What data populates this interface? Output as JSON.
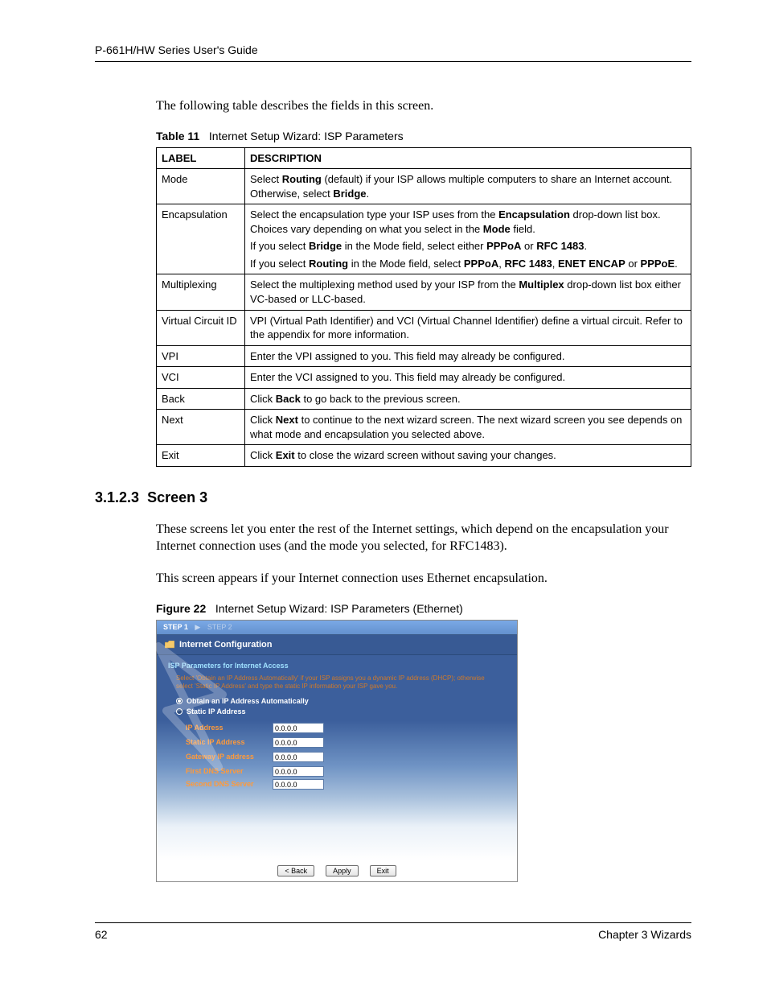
{
  "header": {
    "guide_title": "P-661H/HW Series User's Guide"
  },
  "intro": "The following table describes the fields in this screen.",
  "table_caption": {
    "label": "Table 11",
    "text": "Internet Setup Wizard: ISP Parameters"
  },
  "table": {
    "col_label": "LABEL",
    "col_desc": "DESCRIPTION",
    "rows": [
      {
        "label": "Mode",
        "paras": [
          {
            "segs": [
              {
                "t": "Select "
              },
              {
                "t": "Routing",
                "b": true
              },
              {
                "t": " (default) if your ISP allows multiple computers to share an Internet account. Otherwise, select "
              },
              {
                "t": "Bridge",
                "b": true
              },
              {
                "t": "."
              }
            ]
          }
        ]
      },
      {
        "label": "Encapsulation",
        "paras": [
          {
            "segs": [
              {
                "t": "Select the encapsulation type your ISP uses from the "
              },
              {
                "t": "Encapsulation",
                "b": true
              },
              {
                "t": " drop-down list box. Choices vary depending on what you select in the "
              },
              {
                "t": "Mode",
                "b": true
              },
              {
                "t": " field."
              }
            ]
          },
          {
            "segs": [
              {
                "t": "If you select "
              },
              {
                "t": "Bridge",
                "b": true
              },
              {
                "t": " in the Mode field, select either "
              },
              {
                "t": "PPPoA",
                "b": true
              },
              {
                "t": " or "
              },
              {
                "t": "RFC 1483",
                "b": true
              },
              {
                "t": "."
              }
            ]
          },
          {
            "segs": [
              {
                "t": "If you select "
              },
              {
                "t": "Routing",
                "b": true
              },
              {
                "t": " in the Mode field, select "
              },
              {
                "t": "PPPoA",
                "b": true
              },
              {
                "t": ", "
              },
              {
                "t": "RFC 1483",
                "b": true
              },
              {
                "t": ", "
              },
              {
                "t": "ENET ENCAP",
                "b": true
              },
              {
                "t": " or "
              },
              {
                "t": "PPPoE",
                "b": true
              },
              {
                "t": "."
              }
            ]
          }
        ]
      },
      {
        "label": "Multiplexing",
        "paras": [
          {
            "segs": [
              {
                "t": "Select the multiplexing method used by your ISP from the "
              },
              {
                "t": "Multiplex",
                "b": true
              },
              {
                "t": " drop-down list box either VC-based or LLC-based."
              }
            ]
          }
        ]
      },
      {
        "label": "Virtual Circuit ID",
        "paras": [
          {
            "segs": [
              {
                "t": "VPI (Virtual Path Identifier) and VCI (Virtual Channel Identifier) define a virtual circuit. Refer to the appendix for more information."
              }
            ]
          }
        ]
      },
      {
        "label": "VPI",
        "paras": [
          {
            "segs": [
              {
                "t": "Enter the VPI assigned to you. This field may already be configured."
              }
            ]
          }
        ]
      },
      {
        "label": "VCI",
        "paras": [
          {
            "segs": [
              {
                "t": "Enter the VCI assigned to you. This field may already be configured."
              }
            ]
          }
        ]
      },
      {
        "label": "Back",
        "paras": [
          {
            "segs": [
              {
                "t": "Click "
              },
              {
                "t": "Back",
                "b": true
              },
              {
                "t": " to go back to the previous screen."
              }
            ]
          }
        ]
      },
      {
        "label": "Next",
        "paras": [
          {
            "segs": [
              {
                "t": "Click "
              },
              {
                "t": "Next",
                "b": true
              },
              {
                "t": " to continue to the next wizard screen. The next wizard screen you see depends on what mode and encapsulation you selected above."
              }
            ]
          }
        ]
      },
      {
        "label": "Exit",
        "paras": [
          {
            "segs": [
              {
                "t": "Click "
              },
              {
                "t": "Exit",
                "b": true
              },
              {
                "t": " to close the wizard screen without saving your changes."
              }
            ]
          }
        ]
      }
    ]
  },
  "section": {
    "number": "3.1.2.3",
    "title": "Screen 3"
  },
  "section_p1": "These screens let you enter the rest of the Internet settings, which depend on the encapsulation your Internet connection uses (and the mode you selected, for RFC1483).",
  "section_p2": "This screen appears if your Internet connection uses Ethernet encapsulation.",
  "figure_caption": {
    "label": "Figure 22",
    "text": "Internet Setup Wizard: ISP Parameters (Ethernet)"
  },
  "wizard": {
    "step1": "STEP 1",
    "sep": "▶",
    "step2": "STEP 2",
    "title": "Internet Configuration",
    "section_title": "ISP Parameters for Internet Access",
    "help": "Select 'Obtain an IP Address Automatically' if your ISP assigns you a dynamic IP address (DHCP); otherwise select 'Static IP Address' and type the static IP information your ISP gave you.",
    "radio_auto": "Obtain an IP Address Automatically",
    "radio_static": "Static IP Address",
    "fields": [
      {
        "label": "IP Address",
        "value": "0.0.0.0"
      },
      {
        "label": "Static IP Address",
        "value": "0.0.0.0"
      },
      {
        "label": "Gateway IP address",
        "value": "0.0.0.0"
      },
      {
        "label": "First DNS Server",
        "value": "0.0.0.0"
      },
      {
        "label": "Second DNS Server",
        "value": "0.0.0.0"
      }
    ],
    "btn_back": "< Back",
    "btn_apply": "Apply",
    "btn_exit": "Exit"
  },
  "footer": {
    "page": "62",
    "chapter": "Chapter 3 Wizards"
  }
}
